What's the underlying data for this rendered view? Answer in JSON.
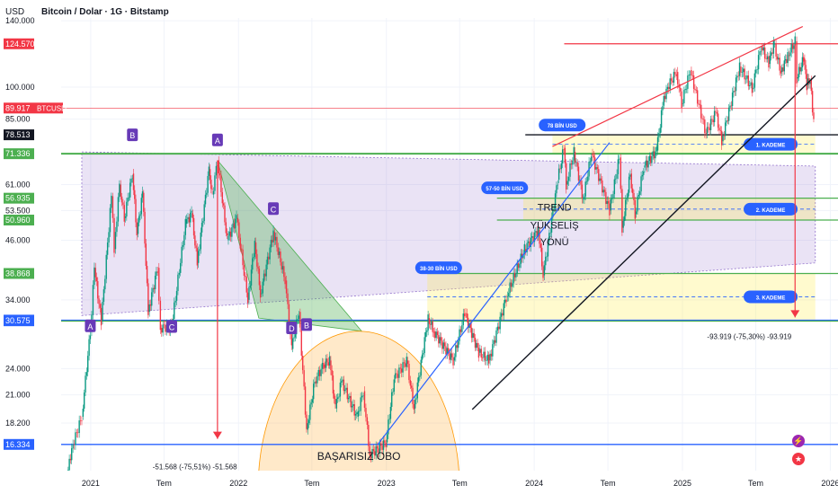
{
  "header": {
    "currency": "USD",
    "title": "Bitcoin / Dolar · 1G · Bitstamp"
  },
  "chart_data": {
    "type": "candlestick",
    "symbol": "BTCUSD",
    "y_scale": "log",
    "ylim": [
      14300,
      142000
    ],
    "xlim": [
      "2020-10-20",
      "2026-01-20"
    ],
    "y_ticks": [
      {
        "label": "140.000",
        "value": 140000
      },
      {
        "label": "100.000",
        "value": 100000
      },
      {
        "label": "85.000",
        "value": 85000
      },
      {
        "label": "61.000",
        "value": 61000
      },
      {
        "label": "53.500",
        "value": 53500
      },
      {
        "label": "46.000",
        "value": 46000
      },
      {
        "label": "34.000",
        "value": 34000
      },
      {
        "label": "24.000",
        "value": 24000
      },
      {
        "label": "21.000",
        "value": 21000
      },
      {
        "label": "18.200",
        "value": 18200
      }
    ],
    "x_ticks": [
      {
        "label": "2021",
        "date": "2021-01-01"
      },
      {
        "label": "Tem",
        "date": "2021-07-01"
      },
      {
        "label": "2022",
        "date": "2022-01-01"
      },
      {
        "label": "Tem",
        "date": "2022-07-01"
      },
      {
        "label": "2023",
        "date": "2023-01-01"
      },
      {
        "label": "Tem",
        "date": "2023-07-01"
      },
      {
        "label": "2024",
        "date": "2024-01-01"
      },
      {
        "label": "Tem",
        "date": "2024-07-01"
      },
      {
        "label": "2025",
        "date": "2025-01-01"
      },
      {
        "label": "Tem",
        "date": "2025-07-01"
      },
      {
        "label": "2026",
        "date": "2026-01-01"
      }
    ],
    "price_tags": [
      {
        "label": "124.570",
        "value": 124570,
        "color": "#f23645"
      },
      {
        "label": "89.917",
        "value": 89917,
        "color": "#f23645",
        "suffix": "BTCUSD"
      },
      {
        "label": "78.513",
        "value": 78513,
        "color": "#131722"
      },
      {
        "label": "71.336",
        "value": 71336,
        "color": "#4caf50"
      },
      {
        "label": "56.935",
        "value": 56935,
        "color": "#4caf50"
      },
      {
        "label": "50.960",
        "value": 50960,
        "color": "#4caf50"
      },
      {
        "label": "38.868",
        "value": 38868,
        "color": "#4caf50"
      },
      {
        "label": "30.678",
        "value": 30678,
        "color": "#2962ff"
      },
      {
        "label": "30.575",
        "value": 30575,
        "color": "#2962ff"
      },
      {
        "label": "16.334",
        "value": 16334,
        "color": "#2962ff"
      }
    ],
    "price_path": [
      [
        "2020-10-20",
        11500
      ],
      [
        "2020-11-15",
        16000
      ],
      [
        "2020-12-10",
        18800
      ],
      [
        "2020-12-31",
        29000
      ],
      [
        "2021-01-10",
        40000
      ],
      [
        "2021-01-27",
        30500
      ],
      [
        "2021-02-21",
        57500
      ],
      [
        "2021-02-28",
        44000
      ],
      [
        "2021-03-13",
        61000
      ],
      [
        "2021-03-25",
        51500
      ],
      [
        "2021-04-14",
        64500
      ],
      [
        "2021-04-25",
        47500
      ],
      [
        "2021-05-09",
        58500
      ],
      [
        "2021-05-23",
        32000
      ],
      [
        "2021-06-15",
        40000
      ],
      [
        "2021-06-22",
        29500
      ],
      [
        "2021-07-20",
        29800
      ],
      [
        "2021-08-23",
        50000
      ],
      [
        "2021-09-07",
        52800
      ],
      [
        "2021-09-21",
        41000
      ],
      [
        "2021-10-20",
        66000
      ],
      [
        "2021-10-28",
        58000
      ],
      [
        "2021-11-10",
        69000
      ],
      [
        "2021-12-04",
        46000
      ],
      [
        "2021-12-27",
        51500
      ],
      [
        "2022-01-24",
        34000
      ],
      [
        "2022-02-10",
        45500
      ],
      [
        "2022-02-24",
        35000
      ],
      [
        "2022-03-28",
        48000
      ],
      [
        "2022-04-26",
        37500
      ],
      [
        "2022-05-12",
        26500
      ],
      [
        "2022-05-30",
        32000
      ],
      [
        "2022-06-18",
        17600
      ],
      [
        "2022-07-08",
        22500
      ],
      [
        "2022-07-30",
        24500
      ],
      [
        "2022-08-14",
        25000
      ],
      [
        "2022-08-28",
        19600
      ],
      [
        "2022-09-12",
        22500
      ],
      [
        "2022-10-20",
        18800
      ],
      [
        "2022-11-05",
        21400
      ],
      [
        "2022-11-21",
        15500
      ],
      [
        "2022-12-31",
        16500
      ],
      [
        "2023-01-20",
        22800
      ],
      [
        "2023-02-20",
        25000
      ],
      [
        "2023-03-10",
        19600
      ],
      [
        "2023-04-14",
        31000
      ],
      [
        "2023-04-28",
        29000
      ],
      [
        "2023-06-15",
        25000
      ],
      [
        "2023-07-13",
        31800
      ],
      [
        "2023-08-17",
        26000
      ],
      [
        "2023-09-11",
        25000
      ],
      [
        "2023-10-24",
        34500
      ],
      [
        "2023-12-08",
        44000
      ],
      [
        "2024-01-11",
        48500
      ],
      [
        "2024-01-23",
        38500
      ],
      [
        "2024-02-28",
        62500
      ],
      [
        "2024-03-14",
        73500
      ],
      [
        "2024-03-20",
        61000
      ],
      [
        "2024-04-08",
        72000
      ],
      [
        "2024-05-01",
        56500
      ],
      [
        "2024-05-21",
        71500
      ],
      [
        "2024-07-05",
        53500
      ],
      [
        "2024-07-29",
        70000
      ],
      [
        "2024-08-05",
        49000
      ],
      [
        "2024-08-25",
        64500
      ],
      [
        "2024-09-06",
        52500
      ],
      [
        "2024-09-27",
        66500
      ],
      [
        "2024-10-29",
        72500
      ],
      [
        "2024-11-13",
        91000
      ],
      [
        "2024-11-22",
        99000
      ],
      [
        "2024-12-17",
        108000
      ],
      [
        "2024-12-30",
        92000
      ],
      [
        "2025-01-20",
        109000
      ],
      [
        "2025-02-28",
        79000
      ],
      [
        "2025-03-24",
        88000
      ],
      [
        "2025-04-08",
        76000
      ],
      [
        "2025-05-22",
        111000
      ],
      [
        "2025-06-22",
        99000
      ],
      [
        "2025-07-14",
        123000
      ],
      [
        "2025-08-02",
        112500
      ],
      [
        "2025-08-14",
        124500
      ],
      [
        "2025-09-01",
        108000
      ],
      [
        "2025-09-18",
        117500
      ],
      [
        "2025-10-06",
        126200
      ],
      [
        "2025-10-10",
        104500
      ],
      [
        "2025-10-27",
        115500
      ],
      [
        "2025-11-04",
        101000
      ],
      [
        "2025-11-12",
        104000
      ],
      [
        "2025-11-21",
        84000
      ]
    ],
    "zones": [
      {
        "label": "1. KADEME",
        "from": 71336,
        "to": 78513,
        "start": "2024-02-15",
        "end": "2025-11-25"
      },
      {
        "label": "2. KADEME",
        "from": 50960,
        "to": 56935,
        "start": "2023-12-05",
        "end": "2025-11-25"
      },
      {
        "label": "3. KADEME",
        "from": 30678,
        "to": 38868,
        "start": "2023-04-12",
        "end": "2025-11-25"
      }
    ],
    "zone_tags": [
      {
        "label": "78 BİN USD",
        "date": "2024-03-10",
        "value": 82500
      },
      {
        "label": "57-50 BİN USD",
        "date": "2023-10-20",
        "value": 60000
      },
      {
        "label": "38-30 BİN USD",
        "date": "2023-05-10",
        "value": 40000
      }
    ],
    "pattern_labels": [
      {
        "label": "A",
        "date": "2020-12-31",
        "value": 29800
      },
      {
        "label": "B",
        "date": "2021-04-14",
        "value": 78500
      },
      {
        "label": "C",
        "date": "2021-07-20",
        "value": 29700
      },
      {
        "label": "A",
        "date": "2021-11-10",
        "value": 76500
      },
      {
        "label": "B",
        "date": "2022-06-18",
        "value": 30000
      },
      {
        "label": "C",
        "date": "2022-03-28",
        "value": 54000
      },
      {
        "label": "D",
        "date": "2022-05-12",
        "value": 29500
      }
    ],
    "annotations": [
      {
        "text": "TREND",
        "date": "2024-02-20",
        "value": 53500,
        "size": 11
      },
      {
        "text": "YÜKSELİŞ",
        "date": "2024-02-20",
        "value": 48800,
        "size": 11
      },
      {
        "text": "YÖNÜ",
        "date": "2024-02-20",
        "value": 44900,
        "size": 11
      },
      {
        "text": "BAŞARISIZ OBO",
        "date": "2022-10-25",
        "value": 15100,
        "size": 12
      },
      {
        "text": "-51.568 (-75,51%) -51.568",
        "date": "2021-09-15",
        "value": 14400,
        "size": 8
      },
      {
        "text": "-93.919 (-75,30%) -93.919",
        "date": "2025-06-15",
        "value": 27900,
        "size": 8
      }
    ]
  }
}
